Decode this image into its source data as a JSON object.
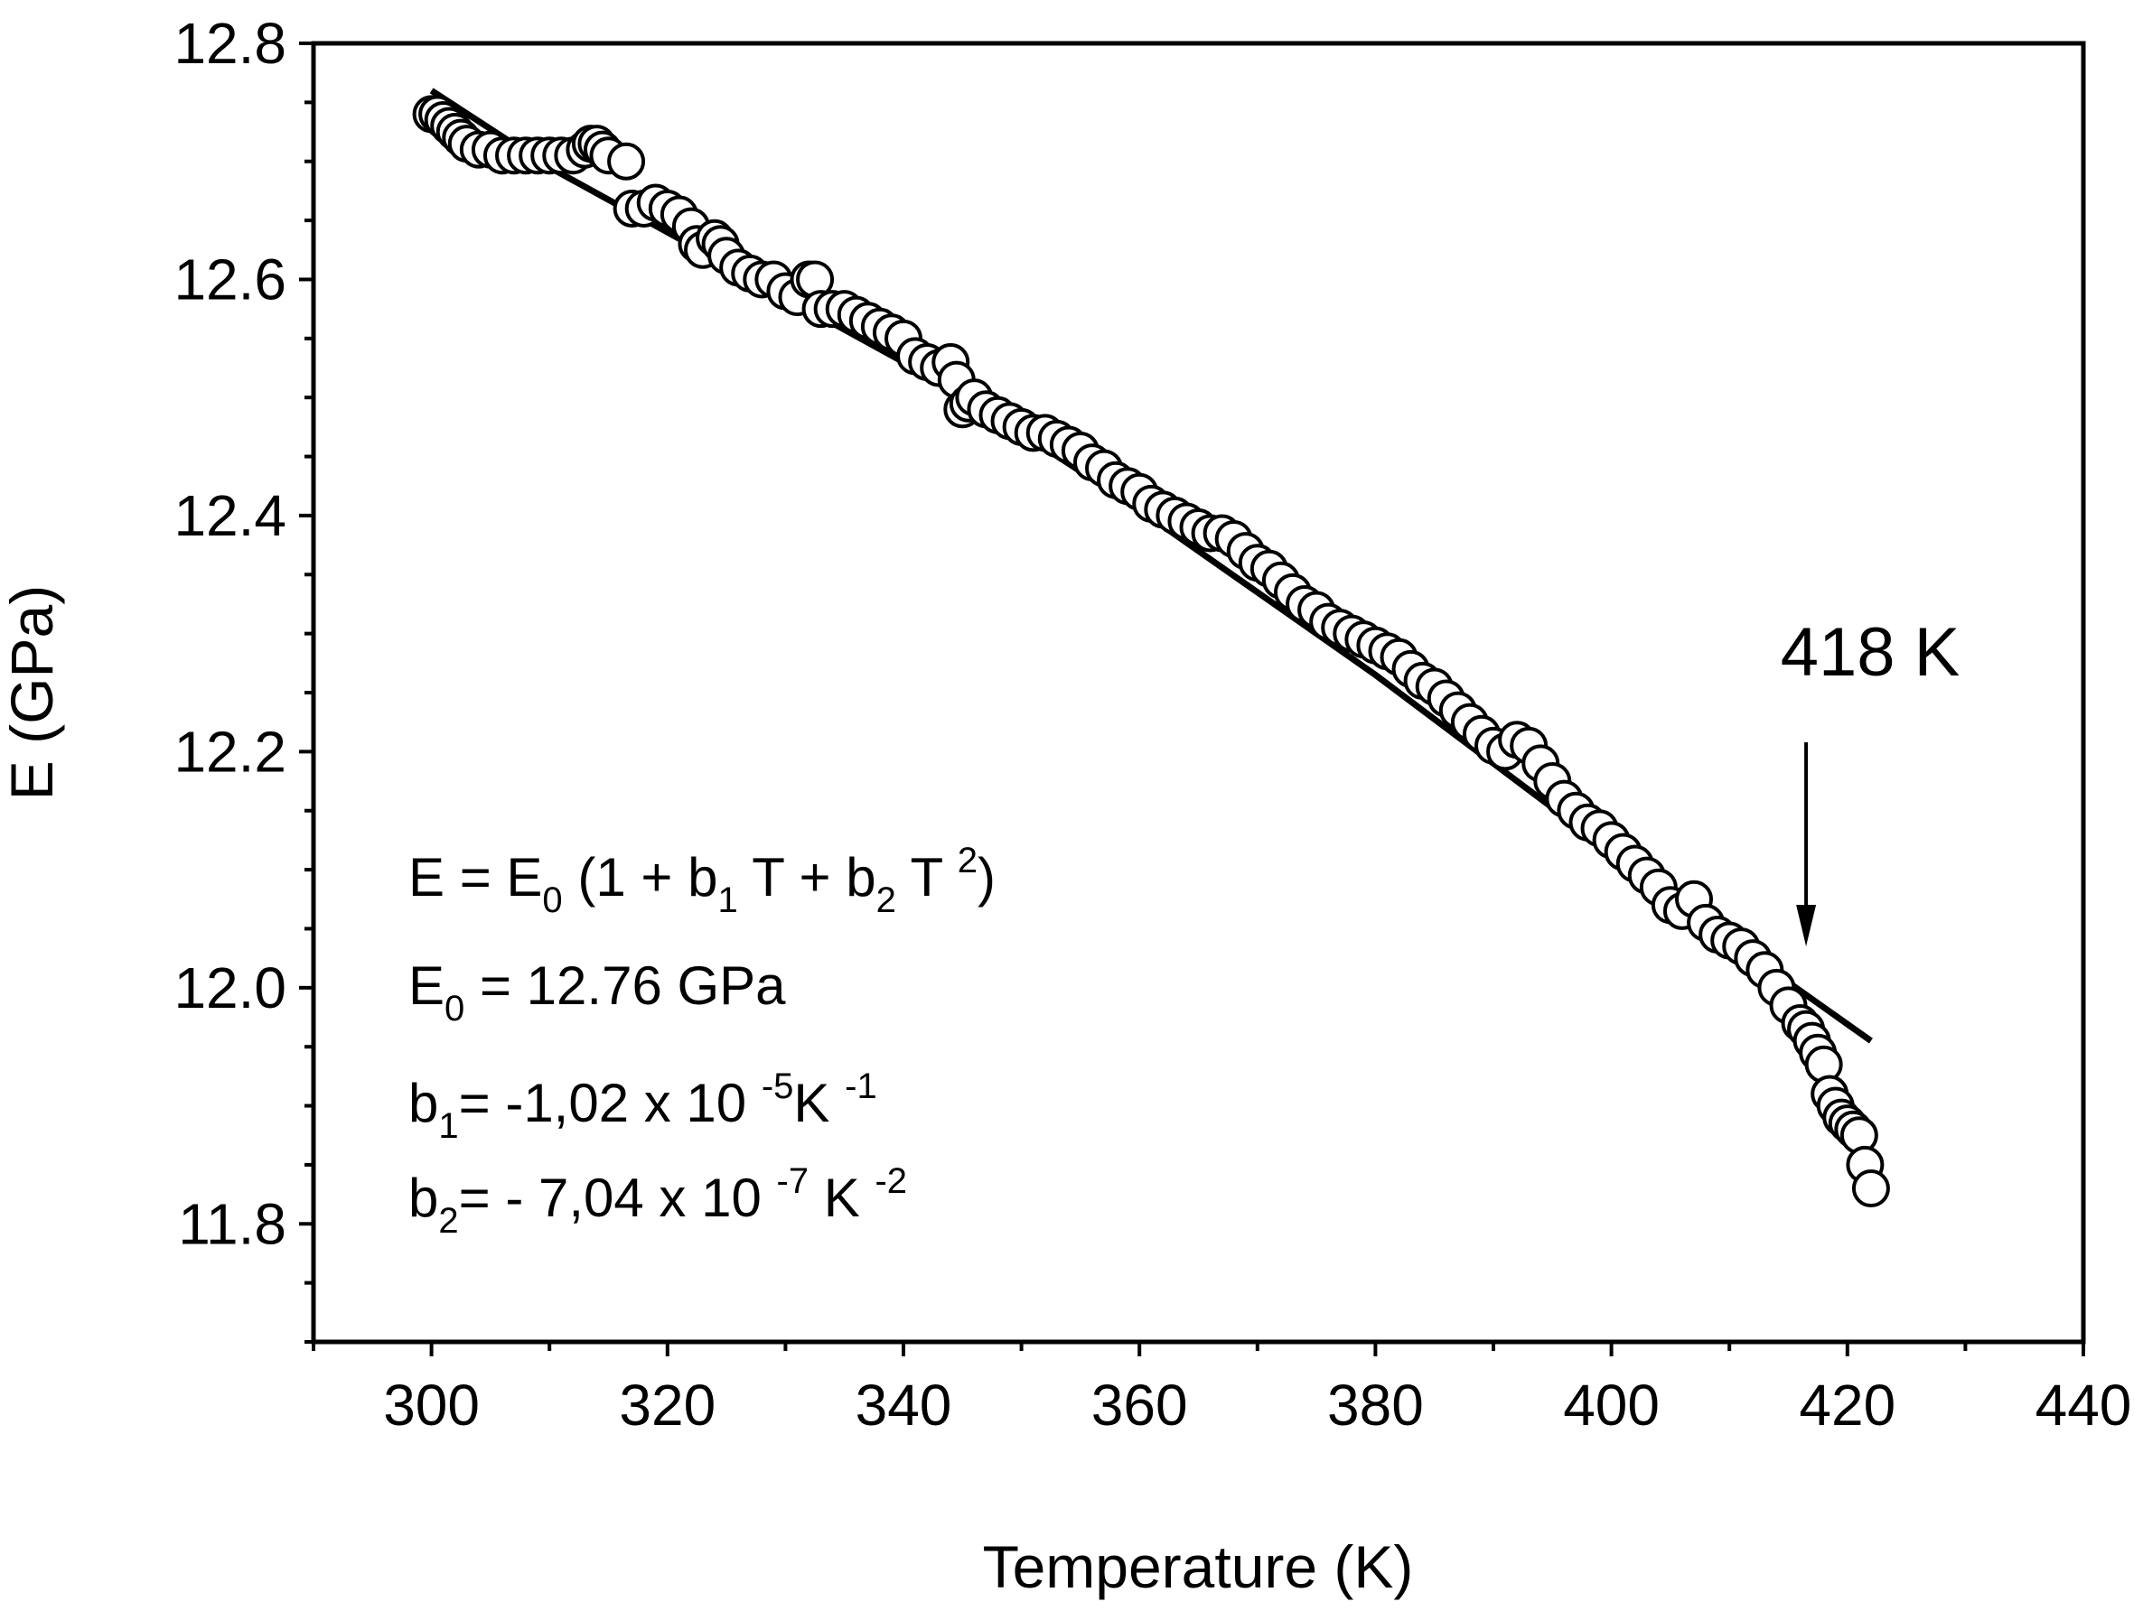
{
  "chart_data": {
    "type": "scatter",
    "xlabel": "Temperature (K)",
    "ylabel": "E (GPa)",
    "xlim": [
      290,
      440
    ],
    "ylim": [
      11.7,
      12.8
    ],
    "xticks": [
      300,
      320,
      340,
      360,
      380,
      400,
      420,
      440
    ],
    "yticks": [
      11.8,
      12.0,
      12.2,
      12.4,
      12.6,
      12.8
    ],
    "grid": false,
    "legend": "none",
    "series": [
      {
        "style": "open-circles",
        "x": [
          300,
          300.5,
          301,
          301.5,
          302,
          302.5,
          303,
          304,
          305,
          306,
          307,
          308,
          309,
          310,
          311,
          312,
          313,
          313.5,
          314,
          314.5,
          315,
          316.5,
          317,
          318,
          319,
          320,
          321,
          322,
          322.5,
          323,
          324,
          324.5,
          325,
          326,
          327,
          328,
          329,
          330,
          331,
          332,
          332.5,
          333,
          334,
          335,
          336,
          337,
          338,
          339,
          340,
          341,
          342,
          343,
          344,
          344.5,
          345,
          345.5,
          346,
          347,
          348,
          349,
          350,
          351,
          352,
          353,
          354,
          355,
          356,
          357,
          358,
          359,
          360,
          361,
          362,
          363,
          364,
          365,
          366,
          367,
          368,
          369,
          370,
          371,
          372,
          373,
          374,
          375,
          376,
          377,
          378,
          379,
          380,
          381,
          382,
          383,
          384,
          385,
          386,
          387,
          388,
          389,
          390,
          391,
          392,
          393,
          394,
          395,
          396,
          397,
          398,
          399,
          400,
          401,
          402,
          403,
          404,
          405,
          406,
          407,
          408,
          409,
          410,
          411,
          412,
          413,
          414,
          415,
          416,
          416.5,
          417,
          417.5,
          418,
          418.5,
          419,
          419.5,
          420,
          420.5,
          421,
          421.5,
          422
        ],
        "y": [
          12.74,
          12.74,
          12.735,
          12.73,
          12.725,
          12.72,
          12.715,
          12.71,
          12.71,
          12.705,
          12.705,
          12.705,
          12.705,
          12.705,
          12.705,
          12.705,
          12.71,
          12.715,
          12.715,
          12.71,
          12.705,
          12.7,
          12.66,
          12.66,
          12.665,
          12.66,
          12.655,
          12.645,
          12.63,
          12.625,
          12.635,
          12.63,
          12.62,
          12.61,
          12.605,
          12.6,
          12.6,
          12.59,
          12.585,
          12.6,
          12.6,
          12.575,
          12.575,
          12.575,
          12.57,
          12.565,
          12.56,
          12.555,
          12.55,
          12.535,
          12.53,
          12.525,
          12.53,
          12.515,
          12.49,
          12.495,
          12.5,
          12.49,
          12.485,
          12.48,
          12.475,
          12.47,
          12.47,
          12.465,
          12.46,
          12.455,
          12.445,
          12.44,
          12.43,
          12.425,
          12.42,
          12.41,
          12.405,
          12.4,
          12.395,
          12.39,
          12.385,
          12.385,
          12.38,
          12.37,
          12.36,
          12.355,
          12.345,
          12.335,
          12.325,
          12.32,
          12.31,
          12.305,
          12.3,
          12.295,
          12.29,
          12.285,
          12.28,
          12.27,
          12.26,
          12.255,
          12.245,
          12.235,
          12.225,
          12.215,
          12.205,
          12.2,
          12.21,
          12.205,
          12.19,
          12.175,
          12.16,
          12.15,
          12.14,
          12.135,
          12.125,
          12.115,
          12.105,
          12.095,
          12.085,
          12.07,
          12.065,
          12.075,
          12.055,
          12.045,
          12.04,
          12.035,
          12.025,
          12.015,
          12.0,
          11.985,
          11.97,
          11.965,
          11.955,
          11.945,
          11.935,
          11.91,
          11.9,
          11.89,
          11.885,
          11.88,
          11.875,
          11.85,
          11.83
        ]
      },
      {
        "style": "fit-line",
        "x": [
          300,
          310,
          320,
          330,
          340,
          350,
          360,
          370,
          380,
          390,
          400,
          410,
          422
        ],
        "y": [
          12.76,
          12.695,
          12.64,
          12.585,
          12.53,
          12.47,
          12.405,
          12.335,
          12.265,
          12.19,
          12.115,
          12.04,
          11.955
        ]
      }
    ],
    "annotations": {
      "equation": {
        "lhs": "E = E",
        "lhs_sub": "0",
        "mid1": " (1 + b",
        "sub1": "1",
        "mid2": " T + b",
        "sub2": "2",
        "mid3": " T ",
        "sup": "2",
        "end": ")"
      },
      "e0": {
        "lhs": "E",
        "sub": "0",
        "rest": " = 12.76 GPa"
      },
      "b1": {
        "lhs": "b",
        "sub": "1",
        "mid": "= -1,02 x 10 ",
        "sup1": "-5",
        "unit": "K ",
        "sup2": "-1"
      },
      "b2": {
        "lhs": "b",
        "sub": "2",
        "mid": "= - 7,04 x 10 ",
        "sup1": "-7",
        "unit": " K ",
        "sup2": "-2"
      },
      "arrow_label": "418 K",
      "arrow_x": 416.5
    }
  }
}
